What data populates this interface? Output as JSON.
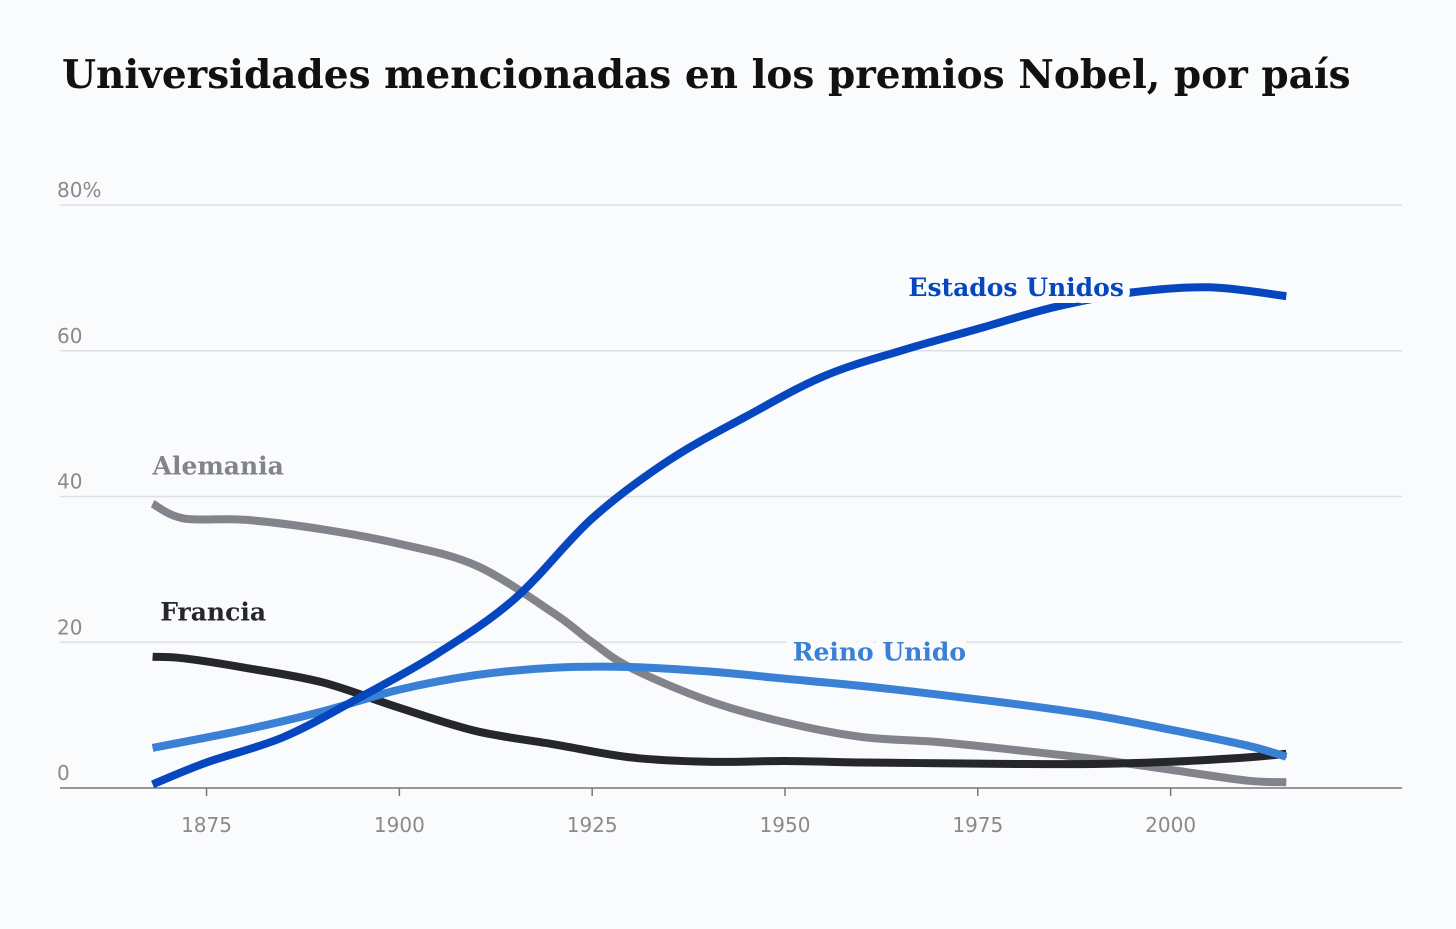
{
  "chart_data": {
    "type": "line",
    "title": "Universidades mencionadas en los premios Nobel, por país",
    "xlabel": "",
    "ylabel": "",
    "xlim": [
      1856,
      2030
    ],
    "ylim": [
      0,
      80
    ],
    "x_ticks": [
      {
        "value": 1875,
        "label": "1875"
      },
      {
        "value": 1900,
        "label": "1900"
      },
      {
        "value": 1925,
        "label": "1925"
      },
      {
        "value": 1950,
        "label": "1950"
      },
      {
        "value": 1975,
        "label": "1975"
      },
      {
        "value": 2000,
        "label": "2000"
      }
    ],
    "y_ticks": [
      {
        "value": 0,
        "label": "0"
      },
      {
        "value": 20,
        "label": "20"
      },
      {
        "value": 40,
        "label": "40"
      },
      {
        "value": 60,
        "label": "60"
      },
      {
        "value": 80,
        "label": "80%"
      }
    ],
    "grid": true,
    "legend": "direct labels on lines",
    "series": [
      {
        "name": "Alemania",
        "color": "#83838c",
        "label_at": [
          1868,
          43
        ],
        "points": [
          [
            1868,
            39
          ],
          [
            1872,
            37
          ],
          [
            1880,
            36.8
          ],
          [
            1890,
            35.5
          ],
          [
            1900,
            33.5
          ],
          [
            1910,
            30.5
          ],
          [
            1920,
            24
          ],
          [
            1925,
            20
          ],
          [
            1930,
            16.5
          ],
          [
            1940,
            12
          ],
          [
            1950,
            9
          ],
          [
            1960,
            7
          ],
          [
            1970,
            6.3
          ],
          [
            1980,
            5.2
          ],
          [
            1990,
            4
          ],
          [
            2000,
            2.5
          ],
          [
            2010,
            1
          ],
          [
            2015,
            0.8
          ]
        ]
      },
      {
        "name": "Francia",
        "color": "#26272b",
        "label_at": [
          1869,
          23
        ],
        "points": [
          [
            1868,
            18
          ],
          [
            1872,
            17.8
          ],
          [
            1880,
            16.5
          ],
          [
            1890,
            14.5
          ],
          [
            1900,
            11
          ],
          [
            1910,
            7.8
          ],
          [
            1920,
            6
          ],
          [
            1930,
            4.2
          ],
          [
            1940,
            3.6
          ],
          [
            1950,
            3.7
          ],
          [
            1960,
            3.5
          ],
          [
            1970,
            3.4
          ],
          [
            1980,
            3.3
          ],
          [
            1990,
            3.3
          ],
          [
            2000,
            3.6
          ],
          [
            2010,
            4.2
          ],
          [
            2015,
            4.7
          ]
        ]
      },
      {
        "name": "Reino Unido",
        "color": "#3a80d5",
        "label_at": [
          1951,
          17.5
        ],
        "points": [
          [
            1868,
            5.5
          ],
          [
            1880,
            8
          ],
          [
            1890,
            10.5
          ],
          [
            1900,
            13.5
          ],
          [
            1910,
            15.5
          ],
          [
            1920,
            16.5
          ],
          [
            1930,
            16.6
          ],
          [
            1940,
            16
          ],
          [
            1950,
            15
          ],
          [
            1960,
            14
          ],
          [
            1970,
            12.8
          ],
          [
            1980,
            11.5
          ],
          [
            1990,
            10
          ],
          [
            2000,
            8
          ],
          [
            2010,
            5.8
          ],
          [
            2015,
            4.3
          ]
        ]
      },
      {
        "name": "Estados Unidos",
        "color": "#0647c0",
        "label_at": [
          1966,
          67.5
        ],
        "points": [
          [
            1868,
            0.5
          ],
          [
            1875,
            3.5
          ],
          [
            1885,
            7
          ],
          [
            1895,
            12.5
          ],
          [
            1905,
            18.5
          ],
          [
            1915,
            26
          ],
          [
            1925,
            37
          ],
          [
            1935,
            45
          ],
          [
            1945,
            51
          ],
          [
            1955,
            56.5
          ],
          [
            1965,
            60
          ],
          [
            1975,
            63
          ],
          [
            1985,
            66
          ],
          [
            1995,
            68
          ],
          [
            2005,
            68.7
          ],
          [
            2015,
            67.5
          ]
        ]
      }
    ]
  }
}
